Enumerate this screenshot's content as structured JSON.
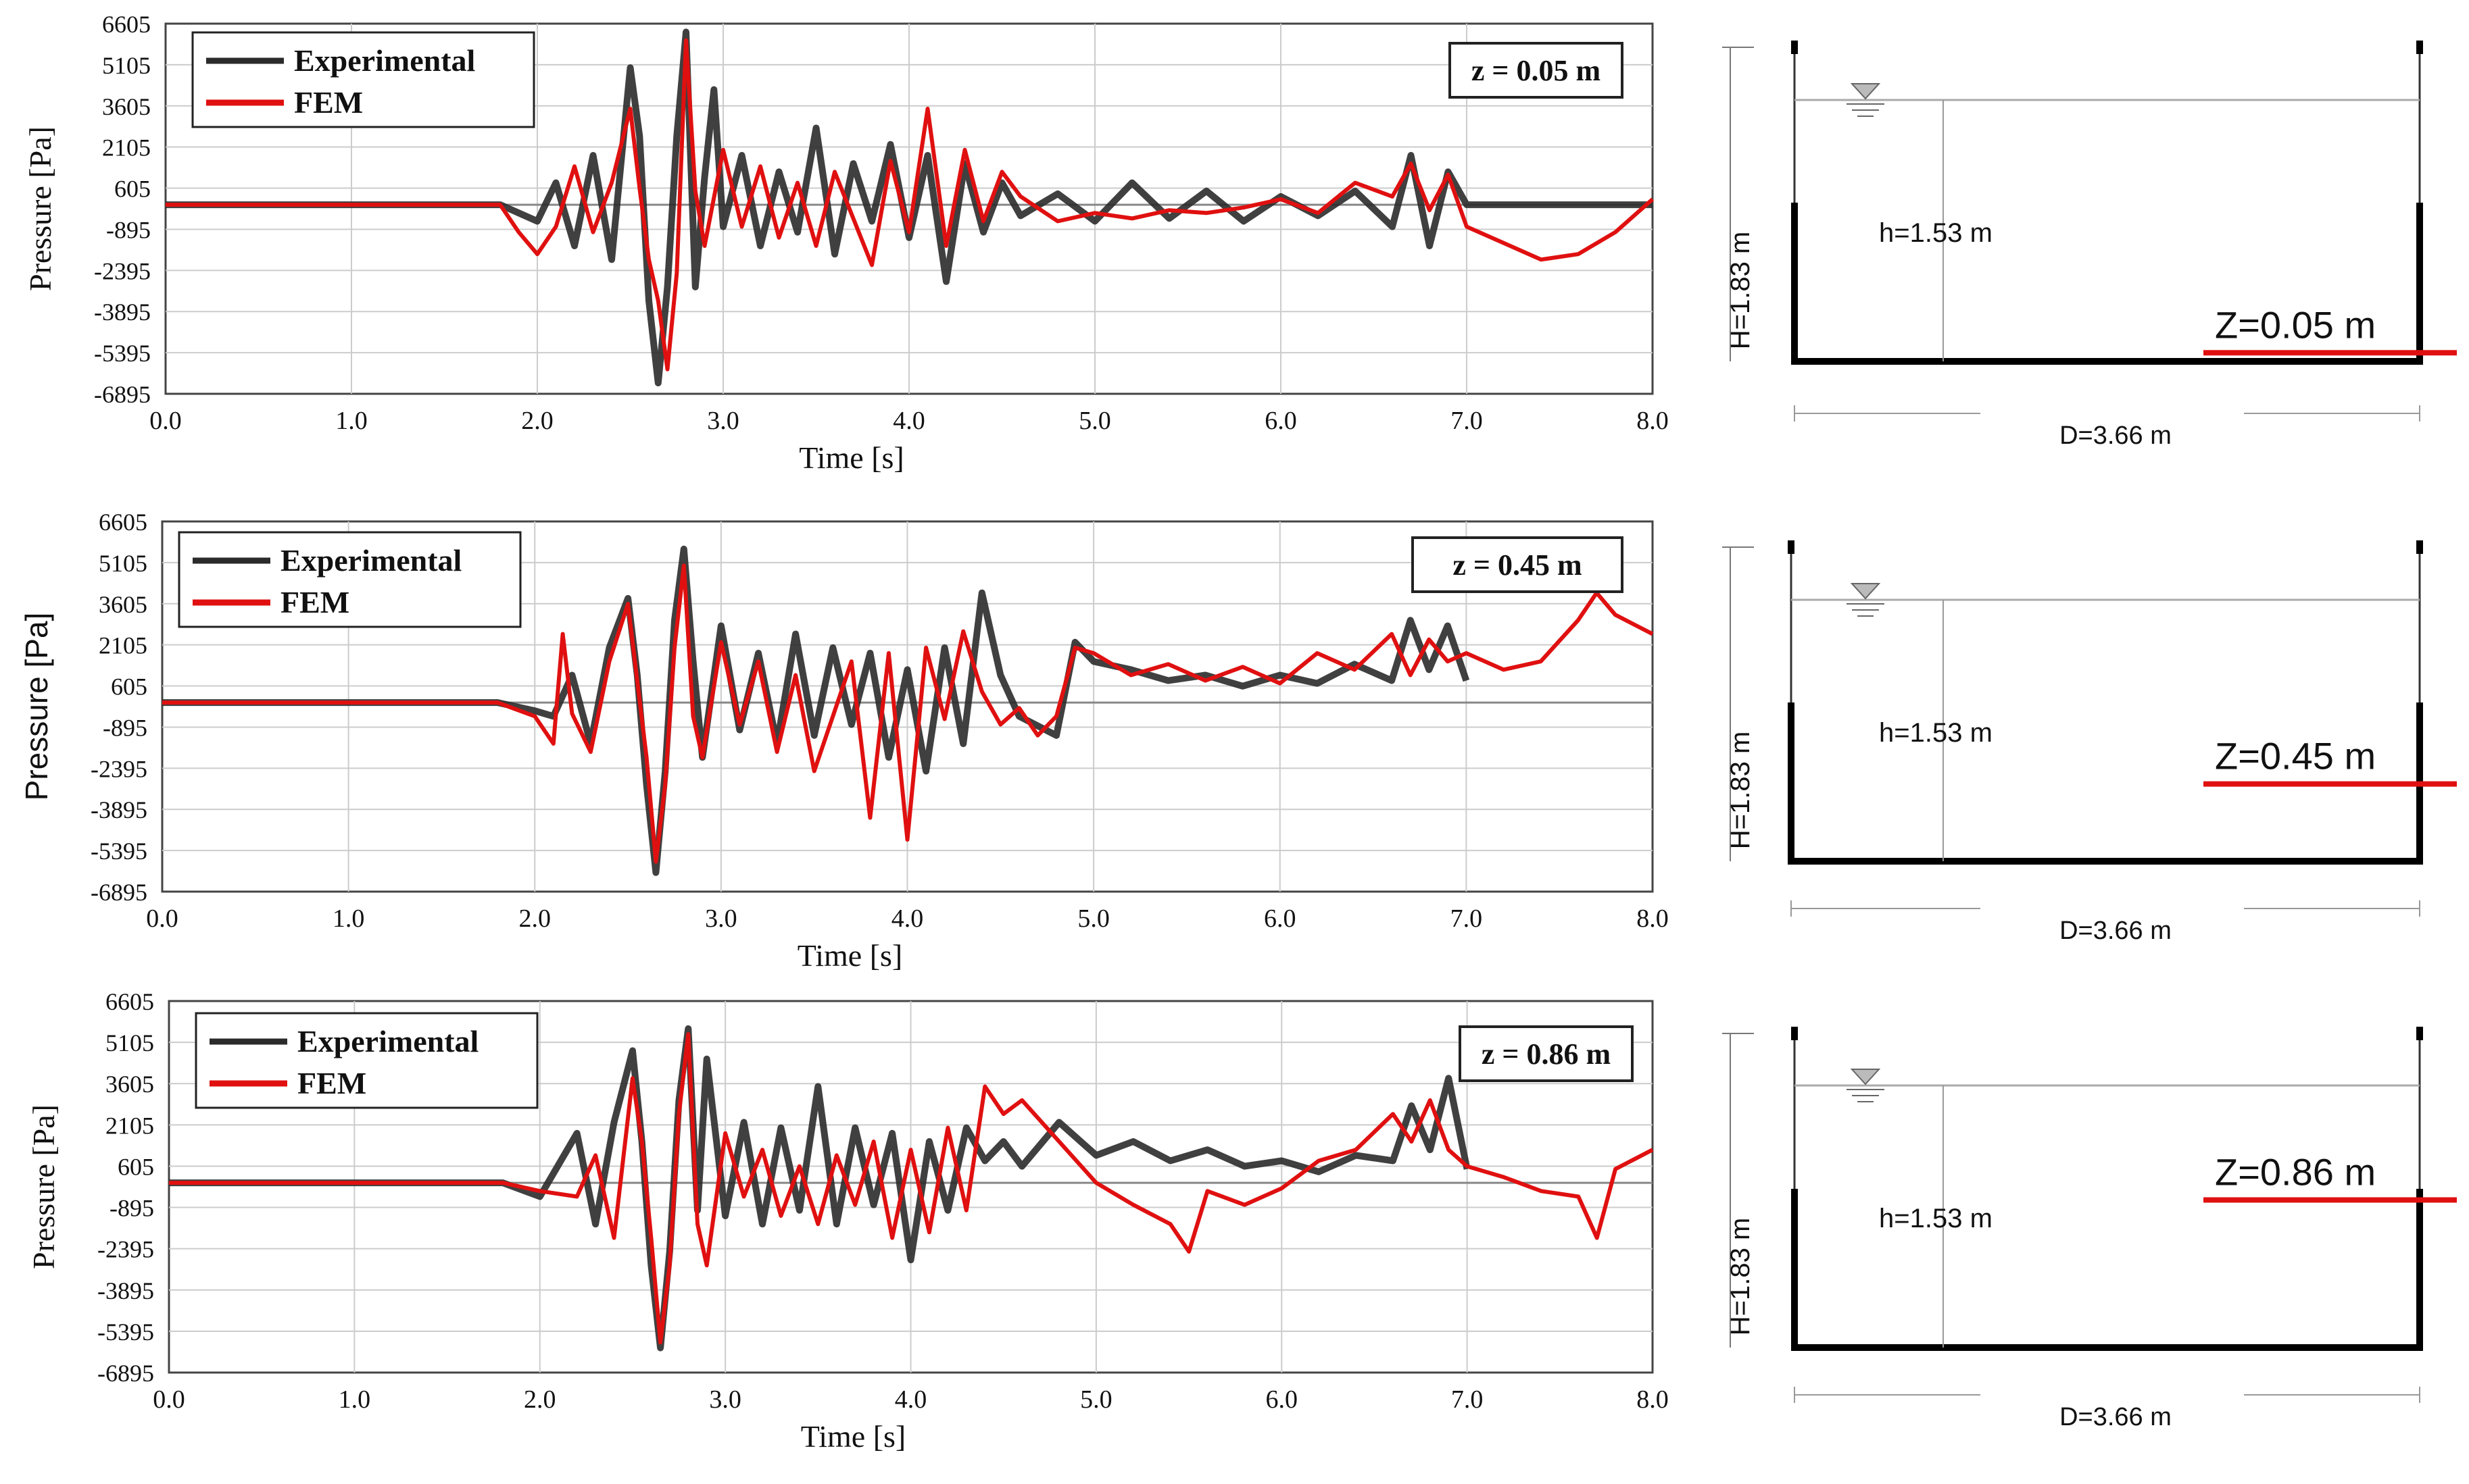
{
  "colors": {
    "experimental": "#2b2b2b",
    "fem": "#e01010",
    "grid": "#cccccc",
    "tank": "#000000"
  },
  "chart_data": [
    {
      "type": "line",
      "xlabel": "Time [s]",
      "ylabel": "Pressure [Pa]",
      "xlim": [
        0,
        8
      ],
      "ylim": [
        -6895,
        6605
      ],
      "x_ticks": [
        "0.0",
        "1.0",
        "2.0",
        "3.0",
        "4.0",
        "5.0",
        "6.0",
        "7.0",
        "8.0"
      ],
      "y_ticks": [
        "6605",
        "5105",
        "3605",
        "2105",
        "605",
        "-895",
        "-2395",
        "-3895",
        "-5395",
        "-6895"
      ],
      "legend": [
        "Experimental",
        "FEM"
      ],
      "annotation": "z = 0.05 m",
      "series": [
        {
          "name": "Experimental",
          "x": [
            0,
            1.8,
            2.0,
            2.1,
            2.2,
            2.3,
            2.4,
            2.5,
            2.55,
            2.6,
            2.65,
            2.7,
            2.75,
            2.8,
            2.85,
            2.9,
            2.95,
            3.0,
            3.1,
            3.2,
            3.3,
            3.4,
            3.5,
            3.6,
            3.7,
            3.8,
            3.9,
            4.0,
            4.1,
            4.2,
            4.3,
            4.4,
            4.5,
            4.6,
            4.8,
            5.0,
            5.2,
            5.4,
            5.6,
            5.8,
            6.0,
            6.2,
            6.4,
            6.6,
            6.7,
            6.8,
            6.9,
            7.0,
            7.5,
            8.0
          ],
          "y": [
            0,
            0,
            -600,
            800,
            -1500,
            1800,
            -2000,
            5000,
            2500,
            -3500,
            -6500,
            -3000,
            2500,
            6300,
            -3000,
            1000,
            4200,
            -800,
            1800,
            -1500,
            1200,
            -1000,
            2800,
            -1800,
            1500,
            -600,
            2200,
            -1200,
            1800,
            -2800,
            1500,
            -1000,
            800,
            -400,
            400,
            -600,
            800,
            -500,
            500,
            -600,
            300,
            -400,
            500,
            -800,
            1800,
            -1500,
            1200,
            0,
            0,
            0
          ]
        },
        {
          "name": "FEM",
          "x": [
            0,
            1.8,
            1.9,
            2.0,
            2.1,
            2.2,
            2.3,
            2.4,
            2.5,
            2.55,
            2.6,
            2.65,
            2.7,
            2.75,
            2.8,
            2.85,
            2.9,
            3.0,
            3.1,
            3.2,
            3.3,
            3.4,
            3.5,
            3.6,
            3.8,
            3.9,
            4.0,
            4.1,
            4.2,
            4.3,
            4.4,
            4.5,
            4.6,
            4.8,
            5.0,
            5.2,
            5.4,
            5.6,
            5.8,
            6.0,
            6.2,
            6.4,
            6.6,
            6.7,
            6.8,
            6.9,
            7.0,
            7.2,
            7.4,
            7.6,
            7.8,
            8.0
          ],
          "y": [
            0,
            0,
            -1000,
            -1800,
            -800,
            1400,
            -1000,
            800,
            3500,
            600,
            -2000,
            -3500,
            -6000,
            -2500,
            6000,
            500,
            -1500,
            2000,
            -800,
            1400,
            -1200,
            800,
            -1500,
            1200,
            -2200,
            1600,
            -1000,
            3500,
            -1500,
            2000,
            -600,
            1200,
            300,
            -600,
            -300,
            -500,
            -200,
            -300,
            -100,
            200,
            -300,
            800,
            300,
            1500,
            -200,
            1100,
            -800,
            -1400,
            -2000,
            -1800,
            -1000,
            200
          ]
        }
      ]
    },
    {
      "type": "line",
      "xlabel": "Time [s]",
      "ylabel": "Pressure [Pa]",
      "xlim": [
        0,
        8
      ],
      "ylim": [
        -6895,
        6605
      ],
      "x_ticks": [
        "0.0",
        "1.0",
        "2.0",
        "3.0",
        "4.0",
        "5.0",
        "6.0",
        "7.0",
        "8.0"
      ],
      "y_ticks": [
        "6605",
        "5105",
        "3605",
        "2105",
        "605",
        "-895",
        "-2395",
        "-3895",
        "-5395",
        "-6895"
      ],
      "legend": [
        "Experimental",
        "FEM"
      ],
      "annotation": "z = 0.45 m",
      "series": [
        {
          "name": "Experimental",
          "x": [
            0,
            1.8,
            2.0,
            2.1,
            2.2,
            2.3,
            2.4,
            2.5,
            2.55,
            2.6,
            2.65,
            2.7,
            2.75,
            2.8,
            2.85,
            2.9,
            3.0,
            3.1,
            3.2,
            3.3,
            3.4,
            3.5,
            3.6,
            3.7,
            3.8,
            3.9,
            4.0,
            4.1,
            4.2,
            4.3,
            4.4,
            4.5,
            4.6,
            4.8,
            4.9,
            5.0,
            5.2,
            5.4,
            5.6,
            5.8,
            6.0,
            6.2,
            6.4,
            6.6,
            6.7,
            6.8,
            6.9,
            7.0
          ],
          "y": [
            0,
            0,
            -300,
            -500,
            1000,
            -1500,
            2000,
            3800,
            1000,
            -3000,
            -6200,
            -2500,
            3000,
            5600,
            1500,
            -2000,
            2800,
            -1000,
            1800,
            -1500,
            2500,
            -1200,
            2000,
            -800,
            1800,
            -2000,
            1200,
            -2500,
            2000,
            -1500,
            4000,
            1000,
            -500,
            -1200,
            2200,
            1500,
            1200,
            800,
            1000,
            600,
            1000,
            700,
            1400,
            800,
            3000,
            1200,
            2800,
            800
          ]
        },
        {
          "name": "FEM",
          "x": [
            0,
            1.8,
            2.0,
            2.1,
            2.15,
            2.2,
            2.3,
            2.4,
            2.5,
            2.55,
            2.6,
            2.65,
            2.7,
            2.75,
            2.8,
            2.85,
            2.9,
            3.0,
            3.1,
            3.2,
            3.3,
            3.4,
            3.5,
            3.6,
            3.7,
            3.8,
            3.9,
            4.0,
            4.1,
            4.2,
            4.3,
            4.4,
            4.5,
            4.6,
            4.7,
            4.8,
            4.9,
            5.0,
            5.2,
            5.4,
            5.6,
            5.8,
            6.0,
            6.2,
            6.4,
            6.6,
            6.7,
            6.8,
            6.9,
            7.0,
            7.2,
            7.4,
            7.6,
            7.7,
            7.8,
            8.0
          ],
          "y": [
            0,
            0,
            -500,
            -1500,
            2500,
            -400,
            -1800,
            1500,
            3600,
            800,
            -2000,
            -5800,
            -3000,
            2000,
            5000,
            -500,
            -2000,
            2200,
            -800,
            1500,
            -1800,
            1000,
            -2500,
            -500,
            1500,
            -4200,
            1800,
            -5000,
            2000,
            -600,
            2600,
            400,
            -800,
            -200,
            -1200,
            -500,
            2000,
            1800,
            1000,
            1400,
            800,
            1300,
            700,
            1800,
            1200,
            2500,
            1000,
            2300,
            1500,
            1800,
            1200,
            1500,
            3000,
            4000,
            3200,
            2500
          ]
        }
      ]
    },
    {
      "type": "line",
      "xlabel": "Time [s]",
      "ylabel": "Pressure [Pa]",
      "xlim": [
        0,
        8
      ],
      "ylim": [
        -6895,
        6605
      ],
      "x_ticks": [
        "0.0",
        "1.0",
        "2.0",
        "3.0",
        "4.0",
        "5.0",
        "6.0",
        "7.0",
        "8.0"
      ],
      "y_ticks": [
        "6605",
        "5105",
        "3605",
        "2105",
        "605",
        "-895",
        "-2395",
        "-3895",
        "-5395",
        "-6895"
      ],
      "legend": [
        "Experimental",
        "FEM"
      ],
      "annotation": "z = 0.86 m",
      "series": [
        {
          "name": "Experimental",
          "x": [
            0,
            1.8,
            2.0,
            2.2,
            2.3,
            2.4,
            2.5,
            2.55,
            2.6,
            2.65,
            2.7,
            2.75,
            2.8,
            2.85,
            2.9,
            3.0,
            3.1,
            3.2,
            3.3,
            3.4,
            3.5,
            3.6,
            3.7,
            3.8,
            3.9,
            4.0,
            4.1,
            4.2,
            4.3,
            4.4,
            4.5,
            4.6,
            4.8,
            5.0,
            5.2,
            5.4,
            5.6,
            5.8,
            6.0,
            6.2,
            6.4,
            6.6,
            6.7,
            6.8,
            6.9,
            7.0
          ],
          "y": [
            0,
            0,
            -500,
            1800,
            -1500,
            2200,
            4800,
            1500,
            -3000,
            -6000,
            -2500,
            3000,
            5600,
            -1000,
            4500,
            -1200,
            2200,
            -1500,
            2000,
            -1000,
            3500,
            -1500,
            2000,
            -800,
            1800,
            -2800,
            1500,
            -1000,
            2000,
            800,
            1500,
            600,
            2200,
            1000,
            1500,
            800,
            1200,
            600,
            800,
            400,
            1000,
            800,
            2800,
            1200,
            3800,
            500
          ]
        },
        {
          "name": "FEM",
          "x": [
            0,
            1.8,
            2.0,
            2.2,
            2.3,
            2.4,
            2.5,
            2.55,
            2.6,
            2.65,
            2.7,
            2.75,
            2.8,
            2.85,
            2.9,
            3.0,
            3.1,
            3.2,
            3.3,
            3.4,
            3.5,
            3.6,
            3.7,
            3.8,
            3.9,
            4.0,
            4.1,
            4.2,
            4.3,
            4.4,
            4.5,
            4.6,
            4.8,
            5.0,
            5.2,
            5.4,
            5.5,
            5.6,
            5.8,
            6.0,
            6.2,
            6.4,
            6.6,
            6.7,
            6.8,
            6.9,
            7.0,
            7.2,
            7.4,
            7.6,
            7.7,
            7.8,
            8.0
          ],
          "y": [
            0,
            0,
            -300,
            -500,
            1000,
            -2000,
            3800,
            1500,
            -2000,
            -5800,
            -3000,
            2500,
            5400,
            -1500,
            -3000,
            1800,
            -500,
            1200,
            -1200,
            600,
            -1500,
            1000,
            -800,
            1500,
            -2000,
            1200,
            -1800,
            2000,
            -1000,
            3500,
            2500,
            3000,
            1500,
            0,
            -800,
            -1500,
            -2500,
            -300,
            -800,
            -200,
            800,
            1200,
            2500,
            1500,
            3000,
            1200,
            600,
            200,
            -300,
            -500,
            -2000,
            500,
            1200
          ]
        }
      ]
    }
  ],
  "diagrams": [
    {
      "z_label": "Z=0.05 m",
      "h_label": "h=1.53 m",
      "H_label": "H=1.83 m",
      "D_label": "D=3.66 m",
      "sensor_height_m": 0.05
    },
    {
      "z_label": "Z=0.45 m",
      "h_label": "h=1.53 m",
      "H_label": "H=1.83 m",
      "D_label": "D=3.66 m",
      "sensor_height_m": 0.45
    },
    {
      "z_label": "Z=0.86 m",
      "h_label": "h=1.53 m",
      "H_label": "H=1.83 m",
      "D_label": "D=3.66 m",
      "sensor_height_m": 0.86
    }
  ]
}
